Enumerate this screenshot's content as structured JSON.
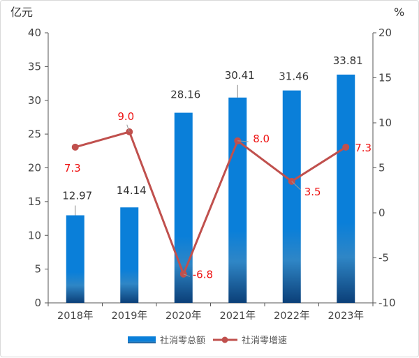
{
  "chart_data": {
    "type": "bar+line",
    "categories": [
      "2018年",
      "2019年",
      "2020年",
      "2021年",
      "2022年",
      "2023年"
    ],
    "series": [
      {
        "name": "社消零总额",
        "type": "bar",
        "axis": "left",
        "values": [
          12.97,
          14.14,
          28.16,
          30.41,
          31.46,
          33.81
        ],
        "labels": [
          "12.97",
          "14.14",
          "28.16",
          "30.41",
          "31.46",
          "33.81"
        ]
      },
      {
        "name": "社消零增速",
        "type": "line",
        "axis": "right",
        "values": [
          7.3,
          9.0,
          -6.8,
          8.0,
          3.5,
          7.3
        ],
        "labels": [
          "7.3",
          "9.0",
          "-6.8",
          "8.0",
          "3.5",
          "7.3"
        ]
      }
    ],
    "left_axis": {
      "unit": "亿元",
      "min": 0,
      "max": 40,
      "step": 5
    },
    "right_axis": {
      "unit": "%",
      "min": -10,
      "max": 20,
      "step": 5
    },
    "legend": "bottom",
    "colors": {
      "bar_top": "#0a7fd9",
      "bar_mid": "#2f86c6",
      "bar_bottom": "#0b3f78",
      "line": "#c0504d",
      "rate_label": "#ee1111"
    }
  }
}
